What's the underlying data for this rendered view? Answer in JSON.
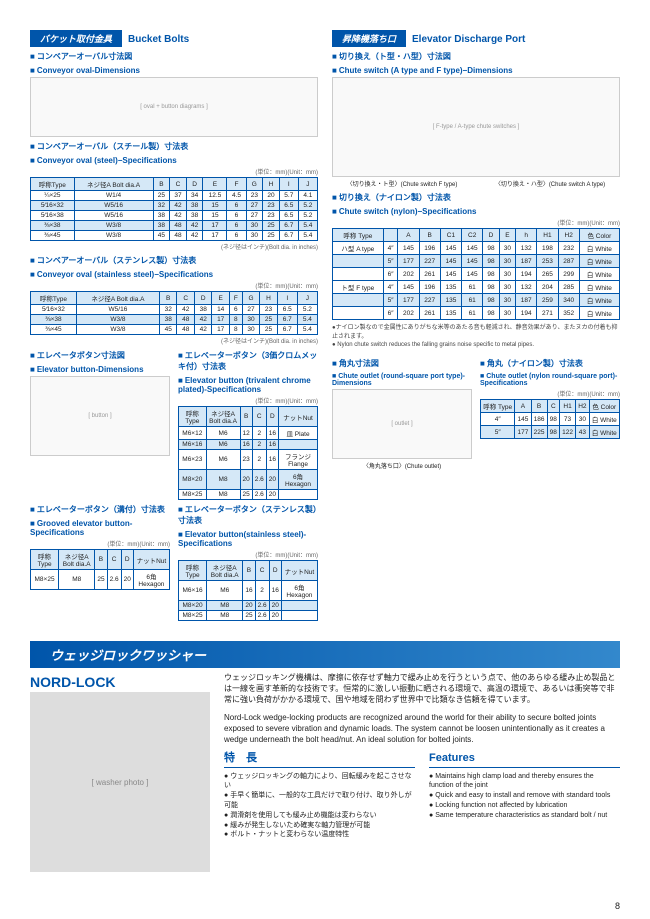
{
  "left": {
    "tag": "バケット取付金具",
    "title_en": "Bucket Bolts",
    "s1_jp": "コンベアーオーバル寸法図",
    "s1_en": "Conveyor oval-Dimensions",
    "s2_jp": "コンベアーオーバル（スチール製）寸法表",
    "s2_en": "Conveyor oval (steel)−Specifications",
    "unit": "(単位：mm)(Unit：mm)",
    "bolt_note": "(ネジ径はインチ)(Bolt dia. in inches)",
    "t1_cols": [
      "呼称Type",
      "ネジ径A Bolt dia.A",
      "B",
      "C",
      "D",
      "E",
      "F",
      "G",
      "H",
      "I",
      "J"
    ],
    "t1_rows": [
      [
        "¼×25",
        "W1/4",
        "25",
        "37",
        "34",
        "12.5",
        "4.5",
        "23",
        "20",
        "5.7",
        "4.1"
      ],
      [
        "5⁄16×32",
        "W5/16",
        "32",
        "42",
        "38",
        "15",
        "6",
        "27",
        "23",
        "6.5",
        "5.2"
      ],
      [
        "5⁄16×38",
        "W5/16",
        "38",
        "42",
        "38",
        "15",
        "6",
        "27",
        "23",
        "6.5",
        "5.2"
      ],
      [
        "⅜×38",
        "W3/8",
        "38",
        "48",
        "42",
        "17",
        "6",
        "30",
        "25",
        "6.7",
        "5.4"
      ],
      [
        "⅜×45",
        "W3/8",
        "45",
        "48",
        "42",
        "17",
        "6",
        "30",
        "25",
        "6.7",
        "5.4"
      ]
    ],
    "s3_jp": "コンベアーオーバル（ステンレス製）寸法表",
    "s3_en": "Conveyor oval (stainless steel)−Specifications",
    "t2_rows": [
      [
        "5⁄16×32",
        "W5/16",
        "32",
        "42",
        "38",
        "14",
        "6",
        "27",
        "23",
        "6.5",
        "5.2"
      ],
      [
        "⅜×38",
        "W3/8",
        "38",
        "48",
        "42",
        "17",
        "8",
        "30",
        "25",
        "6.7",
        "5.4"
      ],
      [
        "⅜×45",
        "W3/8",
        "45",
        "48",
        "42",
        "17",
        "8",
        "30",
        "25",
        "6.7",
        "5.4"
      ]
    ],
    "s4_jp": "エレベータボタン寸法図",
    "s4_en": "Elevator button-Dimensions",
    "s5_jp": "エレベーターボタン（3価クロムメッキ付）寸法表",
    "s5_en": "Elevator button (trivalent chrome plated)-Specifications",
    "t3_cols": [
      "呼称Type",
      "ネジ径A Bolt dia.A",
      "B",
      "C",
      "D",
      "ナットNut"
    ],
    "t3_rows": [
      [
        "M6×12",
        "M6",
        "12",
        "2",
        "16",
        "皿 Plate"
      ],
      [
        "M6×16",
        "M6",
        "16",
        "2",
        "16",
        ""
      ],
      [
        "M6×23",
        "M6",
        "23",
        "2",
        "16",
        "フランジ Flange"
      ],
      [
        "M8×20",
        "M8",
        "20",
        "2.6",
        "20",
        "6角 Hexagon"
      ],
      [
        "M8×25",
        "M8",
        "25",
        "2.6",
        "20",
        ""
      ]
    ],
    "s6_jp": "エレベーターボタン（溝付）寸法表",
    "s6_en": "Grooved elevator button-Specifications",
    "t4_rows": [
      [
        "M8×25",
        "M8",
        "25",
        "2.6",
        "20",
        "6角 Hexagon"
      ]
    ],
    "s7_jp": "エレベーターボタン（ステンレス製）寸法表",
    "s7_en": "Elevator button(stainless steel)-Specifications",
    "t5_rows": [
      [
        "M6×16",
        "M6",
        "16",
        "2",
        "16",
        "6角 Hexagon"
      ],
      [
        "M8×20",
        "M8",
        "20",
        "2.6",
        "20",
        ""
      ],
      [
        "M8×25",
        "M8",
        "25",
        "2.6",
        "20",
        ""
      ]
    ]
  },
  "right": {
    "tag": "昇降機落ち口",
    "title_en": "Elevator Discharge Port",
    "s1_jp": "切り換え（ト型・ハ型）寸法図",
    "s1_en": "Chute switch (A type and F type)−Dimensions",
    "cap1": "〈切り換え・ト型〉(Chute switch F type)",
    "cap2": "〈切り換え・ハ型〉(Chute switch A type)",
    "s2_jp": "切り換え（ナイロン製）寸法表",
    "s2_en": "Chute switch (nylon)−Specifications",
    "t6_cols": [
      "呼称 Type",
      "",
      "A",
      "B",
      "C1",
      "C2",
      "D",
      "E",
      "h",
      "H1",
      "H2",
      "色 Color"
    ],
    "t6_rows": [
      [
        "ハ型 A type",
        "4″",
        "145",
        "196",
        "145",
        "145",
        "98",
        "30",
        "132",
        "198",
        "232",
        "白 White"
      ],
      [
        "",
        "5″",
        "177",
        "227",
        "145",
        "145",
        "98",
        "30",
        "187",
        "253",
        "287",
        "白 White"
      ],
      [
        "",
        "6″",
        "202",
        "261",
        "145",
        "145",
        "98",
        "30",
        "194",
        "265",
        "299",
        "白 White"
      ],
      [
        "ト型 F type",
        "4″",
        "145",
        "196",
        "135",
        "61",
        "98",
        "30",
        "132",
        "204",
        "285",
        "白 White"
      ],
      [
        "",
        "5″",
        "177",
        "227",
        "135",
        "61",
        "98",
        "30",
        "187",
        "259",
        "340",
        "白 White"
      ],
      [
        "",
        "6″",
        "202",
        "261",
        "135",
        "61",
        "98",
        "30",
        "194",
        "271",
        "352",
        "白 White"
      ]
    ],
    "note1": "●ナイロン製なので金属性にありがちな米等のあたる音も軽減され、静音効果があり、またヌカの付着も抑止されます。",
    "note2": "● Nylon chute switch reduces the falling grains noise specific to metal pipes.",
    "s3_jp": "角丸寸法図",
    "s3_en": "Chute outlet (round-square port type)-Dimensions",
    "cap3": "〈角丸落ち口〉(Chute outlet)",
    "s4_jp": "角丸（ナイロン製）寸法表",
    "s4_en": "Chute outlet (nylon round-square port)-Specifications",
    "t7_cols": [
      "呼称 Type",
      "A",
      "B",
      "C",
      "H1",
      "H2",
      "色 Color"
    ],
    "t7_rows": [
      [
        "4″",
        "145",
        "186",
        "98",
        "73",
        "30",
        "白 White"
      ],
      [
        "5″",
        "177",
        "225",
        "98",
        "122",
        "43",
        "白 White"
      ]
    ]
  },
  "wedge": {
    "band": "ウェッジロックワッシャー",
    "logo": "NORD-LOCK",
    "jp": "ウェッジロッキング機構は、摩擦に依存せず軸力で緩み止めを行うという点で、他のあらゆる緩み止め製品とは一線を画す革新的な技術です。恒常的に激しい振動に晒される環境で、高温の環境で、あるいは衝突等で非常に強い負荷がかかる環境で、国や地域を問わず世界中で比類なき信頼を得ています。",
    "en": "Nord-Lock wedge-locking products are recognized around the world for their ability to secure bolted joints exposed to severe vibration and dynamic loads. The system cannot be loosen unintentionally as it creates a wedge underneath the bolt head/nut. An ideal solution for bolted joints.",
    "feat_jp_hdr": "特　長",
    "feat_en_hdr": "Features",
    "feat_jp": [
      "ウェッジロッキングの軸力により、回転緩みを起こさせない",
      "手早く簡単に、一般的な工具だけで取り付け、取り外しが可能",
      "潤滑剤を使用しても緩み止め機能は変わらない",
      "緩みが発生しないため確実な軸力管理が可能",
      "ボルト・ナットと変わらない温度特性"
    ],
    "feat_en": [
      "Maintains high clamp load and thereby ensures the function of the joint",
      "Quick and easy to install and remove with standard tools",
      "Locking function not affected by lubrication",
      "Same temperature characteristics as standard bolt / nut"
    ]
  },
  "page_num": "8"
}
